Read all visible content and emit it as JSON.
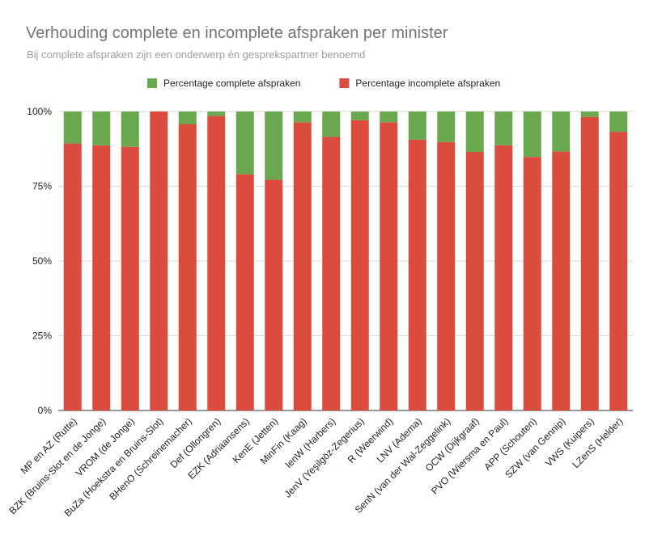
{
  "chart_data": {
    "type": "bar",
    "stacked": true,
    "title": "Verhouding complete en incomplete afspraken per minister",
    "subtitle": "Bij complete afspraken zijn een onderwerp én gesprekspartner benoemd",
    "xlabel": "",
    "ylabel": "",
    "ylim": [
      0,
      100
    ],
    "y_ticks": [
      "0%",
      "25%",
      "50%",
      "75%",
      "100%"
    ],
    "grid": true,
    "legend_position": "top",
    "categories": [
      "MP en AZ (Rutte)",
      "BZK (Bruins-Slot en de Jonge)",
      "VROM (de Jonge)",
      "BuZa (Hoekstra en Bruins-Slot)",
      "BHenO (Schreinemacher)",
      "Def (Ollongren)",
      "EZK (Adriaansens)",
      "KenE (Jetten)",
      "MinFin (Kaag)",
      "IenW (Harbers)",
      "JenV (Yeşilgöz-Zegerius)",
      "R (Weerwind)",
      "LNV (Adema)",
      "SenN (van der Wal-Zeggelink)",
      "OCW (Dijkgraaf)",
      "PVO (Wiersma en Paul)",
      "APP (Schouten)",
      "SZW (van Gennip)",
      "VWS (Kuipers)",
      "LZenS (Helder)"
    ],
    "series": [
      {
        "name": "Percentage incomplete afspraken",
        "color": "#db4c3f",
        "values": [
          89.3,
          88.7,
          88.2,
          100,
          95.8,
          98.5,
          79.0,
          77.2,
          96.4,
          91.5,
          97.1,
          96.4,
          90.6,
          89.8,
          86.5,
          88.7,
          84.8,
          86.6,
          98.2,
          93.2
        ]
      },
      {
        "name": "Percentage complete afspraken",
        "color": "#6aa84f",
        "values": [
          10.7,
          11.3,
          11.8,
          0,
          4.2,
          1.5,
          21.0,
          22.8,
          3.6,
          8.5,
          2.9,
          3.6,
          9.4,
          10.2,
          13.5,
          11.3,
          15.2,
          13.4,
          1.8,
          6.8
        ]
      }
    ],
    "legend": [
      {
        "label": "Percentage complete afspraken",
        "color": "#6aa84f"
      },
      {
        "label": "Percentage incomplete afspraken",
        "color": "#db4c3f"
      }
    ]
  }
}
